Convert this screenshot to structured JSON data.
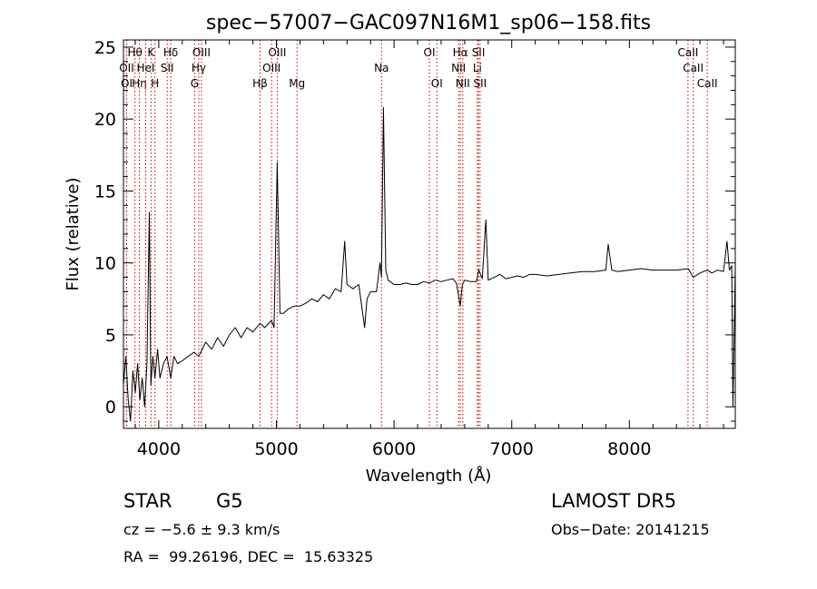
{
  "chart_data": {
    "type": "line",
    "title": "spec−57007−GAC097N16M1_sp06−158.fits",
    "xlabel": "Wavelength (Å)",
    "ylabel": "Flux (relative)",
    "xlim": [
      3700,
      8900
    ],
    "ylim": [
      -1.5,
      25.5
    ],
    "xticks": [
      4000,
      5000,
      6000,
      7000,
      8000
    ],
    "yticks": [
      0,
      5,
      10,
      15,
      20,
      25
    ],
    "grid": false,
    "line_color": "#000000",
    "marker_color": "#cc0000",
    "series": [
      {
        "x": [
          3700,
          3720,
          3740,
          3760,
          3780,
          3800,
          3820,
          3840,
          3860,
          3880,
          3900,
          3920,
          3933,
          3950,
          3968,
          3990,
          4010,
          4040,
          4070,
          4102,
          4130,
          4160,
          4200,
          4250,
          4300,
          4340,
          4400,
          4450,
          4500,
          4550,
          4600,
          4650,
          4700,
          4750,
          4800,
          4861,
          4900,
          4959,
          4980,
          5007,
          5030,
          5060,
          5100,
          5150,
          5200,
          5250,
          5300,
          5350,
          5400,
          5450,
          5500,
          5550,
          5580,
          5600,
          5650,
          5700,
          5750,
          5770,
          5800,
          5850,
          5880,
          5893,
          5910,
          5930,
          5950,
          6000,
          6050,
          6100,
          6150,
          6200,
          6250,
          6300,
          6350,
          6400,
          6450,
          6500,
          6530,
          6563,
          6580,
          6600,
          6650,
          6700,
          6720,
          6750,
          6780,
          6800,
          6850,
          6900,
          6950,
          7000,
          7050,
          7100,
          7150,
          7200,
          7300,
          7400,
          7500,
          7600,
          7700,
          7800,
          7820,
          7850,
          7900,
          8000,
          8100,
          8200,
          8300,
          8400,
          8500,
          8542,
          8600,
          8662,
          8700,
          8750,
          8800,
          8830,
          8850,
          8870,
          8880,
          8900
        ],
        "y": [
          1.5,
          3.5,
          0.5,
          -1,
          2.5,
          1,
          3,
          0.5,
          2,
          0,
          3,
          13.5,
          1.5,
          3.5,
          2,
          4,
          2,
          3,
          3.5,
          2,
          3.5,
          3,
          3.2,
          3.5,
          3.8,
          3.5,
          4.5,
          4,
          4.8,
          4.2,
          5,
          5.5,
          4.8,
          5.5,
          5.2,
          5.8,
          5.5,
          6,
          5.5,
          17,
          6.5,
          6.5,
          6.8,
          7,
          7,
          7.2,
          7.5,
          7.3,
          7.8,
          7.5,
          8.2,
          8,
          11.5,
          8.5,
          8.2,
          8.5,
          5.5,
          7.5,
          8,
          8,
          10,
          9,
          20.8,
          9.5,
          8.8,
          8.5,
          8.5,
          8.6,
          8.5,
          8.5,
          8.7,
          8.6,
          8.8,
          8.7,
          8.8,
          8.9,
          8.6,
          7,
          8.5,
          8.8,
          8.7,
          8.7,
          9.5,
          8.9,
          13,
          8.8,
          9,
          9.2,
          8.9,
          9,
          9.1,
          9,
          9.2,
          9.2,
          9.1,
          9.2,
          9.3,
          9.4,
          9.4,
          9.5,
          11.3,
          9.5,
          9.4,
          9.5,
          9.6,
          9.5,
          9.5,
          9.5,
          9.6,
          9,
          9.3,
          9.5,
          9.3,
          9.5,
          9.4,
          11.5,
          9.5,
          9.8,
          0,
          9.8
        ]
      }
    ],
    "line_markers": [
      {
        "label": "Hθ",
        "wl": 3798,
        "row": 0,
        "align": "middle"
      },
      {
        "label": "OII",
        "wl": 3727,
        "row": 1,
        "align": "middle"
      },
      {
        "label": "OI",
        "wl": 3727,
        "row": 2,
        "align": "middle"
      },
      {
        "label": "Hη",
        "wl": 3835,
        "row": 2,
        "align": "middle"
      },
      {
        "label": "HeI",
        "wl": 3889,
        "row": 1,
        "align": "middle"
      },
      {
        "label": "K",
        "wl": 3934,
        "row": 0,
        "align": "middle"
      },
      {
        "label": "H",
        "wl": 3968,
        "row": 2,
        "align": "middle"
      },
      {
        "label": "SII",
        "wl": 4072,
        "row": 1,
        "align": "middle"
      },
      {
        "label": "Hδ",
        "wl": 4102,
        "row": 0,
        "align": "middle"
      },
      {
        "label": "OIII",
        "wl": 4363,
        "row": 0,
        "align": "middle"
      },
      {
        "label": "Hγ",
        "wl": 4340,
        "row": 1,
        "align": "middle"
      },
      {
        "label": "G",
        "wl": 4305,
        "row": 2,
        "align": "middle"
      },
      {
        "label": "OIII",
        "wl": 5007,
        "row": 0,
        "align": "middle"
      },
      {
        "label": "OIII",
        "wl": 4959,
        "row": 1,
        "align": "middle"
      },
      {
        "label": "Hβ",
        "wl": 4861,
        "row": 2,
        "align": "middle"
      },
      {
        "label": "Mg",
        "wl": 5175,
        "row": 2,
        "align": "middle"
      },
      {
        "label": "Na",
        "wl": 5893,
        "row": 1,
        "align": "middle"
      },
      {
        "label": "OI",
        "wl": 6300,
        "row": 0,
        "align": "middle"
      },
      {
        "label": "OI",
        "wl": 6364,
        "row": 2,
        "align": "middle"
      },
      {
        "label": "Hα",
        "wl": 6563,
        "row": 0,
        "align": "middle"
      },
      {
        "label": "NII",
        "wl": 6548,
        "row": 1,
        "align": "middle"
      },
      {
        "label": "NII",
        "wl": 6584,
        "row": 2,
        "align": "middle"
      },
      {
        "label": "SII",
        "wl": 6717,
        "row": 0,
        "align": "middle"
      },
      {
        "label": "Li",
        "wl": 6708,
        "row": 1,
        "align": "middle"
      },
      {
        "label": "SII",
        "wl": 6731,
        "row": 2,
        "align": "middle"
      },
      {
        "label": "CaII",
        "wl": 8498,
        "row": 0,
        "align": "middle"
      },
      {
        "label": "CaII",
        "wl": 8542,
        "row": 1,
        "align": "middle"
      },
      {
        "label": "CaII",
        "wl": 8662,
        "row": 2,
        "align": "middle"
      }
    ]
  },
  "info": {
    "object_class": "STAR",
    "subclass": "G5",
    "survey": "LAMOST DR5",
    "cz": "cz = −5.6 ± 9.3 km/s",
    "obs_date": "Obs−Date: 20141215",
    "coords": "RA =  99.26196, DEC =  15.63325"
  }
}
